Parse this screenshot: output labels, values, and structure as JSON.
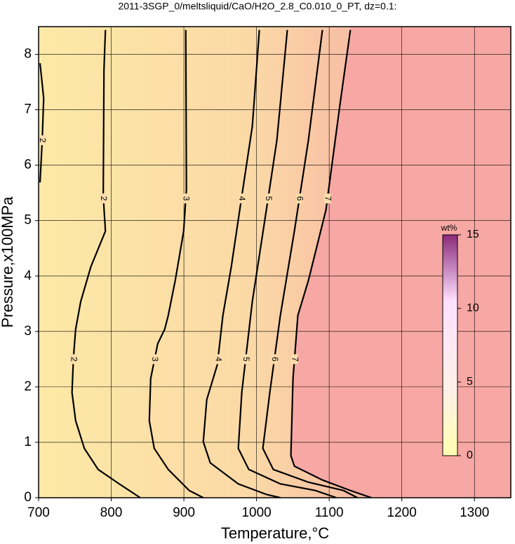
{
  "chart_data": {
    "type": "contour",
    "title": "2011-3SGP_0/meltsliquid/CaO/H2O_2.8_C0.010_0_PT, dz=0.1:",
    "x_label": "Temperature,°C",
    "y_label": "Pressure,x100MPa",
    "xlim": [
      700,
      1350
    ],
    "ylim": [
      0,
      8.5
    ],
    "xticks": [
      700,
      800,
      900,
      1000,
      1100,
      1200,
      1300
    ],
    "yticks": [
      0,
      1,
      2,
      3,
      4,
      5,
      6,
      7,
      8
    ],
    "grid": true,
    "colorbar": {
      "label": "wt%",
      "lim": [
        0,
        15
      ],
      "ticks": [
        0,
        5,
        10,
        15
      ]
    },
    "contours": [
      {
        "level": 2,
        "x": [
          702,
          707,
          705,
          702
        ],
        "y": [
          7.84,
          7.21,
          6.45,
          5.69
        ]
      },
      {
        "level": 2,
        "x": [
          792,
          790,
          789,
          792,
          772,
          758,
          751,
          748,
          746,
          751,
          763,
          782,
          811,
          840
        ],
        "y": [
          8.44,
          7.72,
          5.44,
          4.81,
          4.17,
          3.54,
          3.04,
          2.53,
          1.9,
          1.39,
          0.89,
          0.51,
          0.25,
          0
        ]
      },
      {
        "level": 3,
        "x": [
          902.6,
          903.5,
          899.7,
          888.1,
          878.5,
          873.6,
          864,
          854.3,
          852.4,
          859.2,
          878.5,
          907.4,
          926.7
        ],
        "y": [
          8.44,
          5.57,
          4.81,
          3.92,
          3.29,
          3.04,
          2.78,
          2.15,
          1.39,
          0.89,
          0.51,
          0.13,
          0
        ]
      },
      {
        "level": 4,
        "x": [
          1003.9,
          994.2,
          979.7,
          965.3,
          953.7,
          946,
          931.5,
          926.7,
          936.3,
          974.9,
          1013.5,
          1032.8
        ],
        "y": [
          8.44,
          6.7,
          5.44,
          4.17,
          3.29,
          2.4,
          1.77,
          1.01,
          0.63,
          0.25,
          0.06,
          0
        ]
      },
      {
        "level": 5,
        "x": [
          1042.4,
          1028,
          1013.5,
          994.2,
          979.7,
          974.9,
          989.4,
          1032.8,
          1081,
          1110
        ],
        "y": [
          8.44,
          6.45,
          5.19,
          3.54,
          1.9,
          0.89,
          0.51,
          0.25,
          0.13,
          0
        ]
      },
      {
        "level": 6,
        "x": [
          1090.7,
          1071.4,
          1052.1,
          1032.8,
          1018.3,
          1008.7,
          1023.1,
          1071.4,
          1119.6,
          1138.9
        ],
        "y": [
          8.44,
          6.45,
          4.81,
          3.29,
          1.9,
          0.89,
          0.51,
          0.28,
          0.13,
          0
        ]
      },
      {
        "level": 7,
        "x": [
          1129.2,
          1114.8,
          1095.5,
          1071.4,
          1056.9,
          1050.2,
          1047.3,
          1052.1,
          1090.7,
          1129.2,
          1158.2
        ],
        "y": [
          8.44,
          7.09,
          5.19,
          3.92,
          3.29,
          2.15,
          0.76,
          0.57,
          0.32,
          0.13,
          0
        ]
      }
    ]
  }
}
